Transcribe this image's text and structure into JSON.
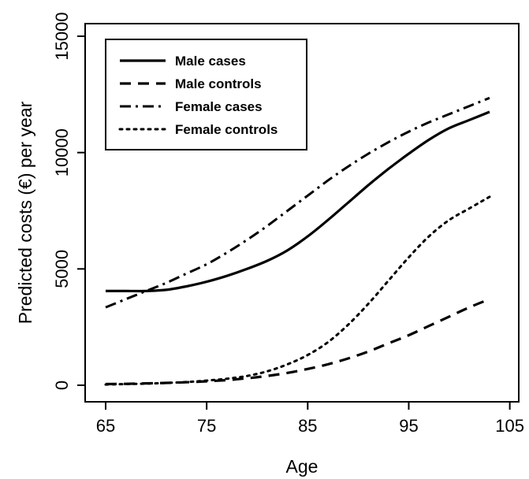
{
  "chart_data": {
    "type": "line",
    "title": "",
    "xlabel": "Age",
    "ylabel": "Predicted costs (€) per year",
    "xlim": [
      65,
      103
    ],
    "ylim": [
      0,
      15000
    ],
    "x_ticks": [
      65,
      75,
      85,
      95,
      105
    ],
    "y_ticks": [
      0,
      5000,
      10000,
      15000
    ],
    "x_tick_labels": [
      "65",
      "75",
      "85",
      "95",
      "105"
    ],
    "y_tick_labels": [
      "0",
      "5000",
      "10000",
      "15000"
    ],
    "grid": false,
    "legend": {
      "position": "top-left"
    },
    "series": [
      {
        "name": "Male cases",
        "style": "solid",
        "x": [
          65,
          67,
          69,
          71,
          73,
          75,
          77,
          79,
          81,
          83,
          85,
          87,
          89,
          91,
          93,
          95,
          97,
          99,
          101,
          103
        ],
        "values": [
          4050,
          4050,
          4050,
          4100,
          4250,
          4450,
          4700,
          5000,
          5350,
          5800,
          6400,
          7100,
          7850,
          8600,
          9300,
          9950,
          10550,
          11050,
          11400,
          11750
        ]
      },
      {
        "name": "Male controls",
        "style": "dashed",
        "x": [
          65,
          67,
          69,
          71,
          73,
          75,
          77,
          79,
          81,
          83,
          85,
          87,
          89,
          91,
          93,
          95,
          97,
          99,
          101,
          103
        ],
        "values": [
          50,
          60,
          80,
          100,
          130,
          170,
          220,
          300,
          400,
          530,
          700,
          900,
          1150,
          1450,
          1800,
          2150,
          2550,
          2950,
          3350,
          3700
        ]
      },
      {
        "name": "Female cases",
        "style": "dashdot",
        "x": [
          65,
          67,
          69,
          71,
          73,
          75,
          77,
          79,
          81,
          83,
          85,
          87,
          89,
          91,
          93,
          95,
          97,
          99,
          101,
          103
        ],
        "values": [
          3350,
          3700,
          4050,
          4400,
          4800,
          5200,
          5700,
          6250,
          6850,
          7500,
          8150,
          8800,
          9400,
          9950,
          10450,
          10900,
          11300,
          11650,
          12000,
          12350
        ]
      },
      {
        "name": "Female controls",
        "style": "dotted",
        "x": [
          65,
          67,
          69,
          71,
          73,
          75,
          77,
          79,
          81,
          83,
          85,
          87,
          89,
          91,
          93,
          95,
          97,
          99,
          101,
          103
        ],
        "values": [
          30,
          50,
          70,
          100,
          140,
          200,
          280,
          400,
          600,
          900,
          1300,
          1850,
          2600,
          3500,
          4500,
          5500,
          6400,
          7100,
          7600,
          8100
        ]
      }
    ]
  }
}
